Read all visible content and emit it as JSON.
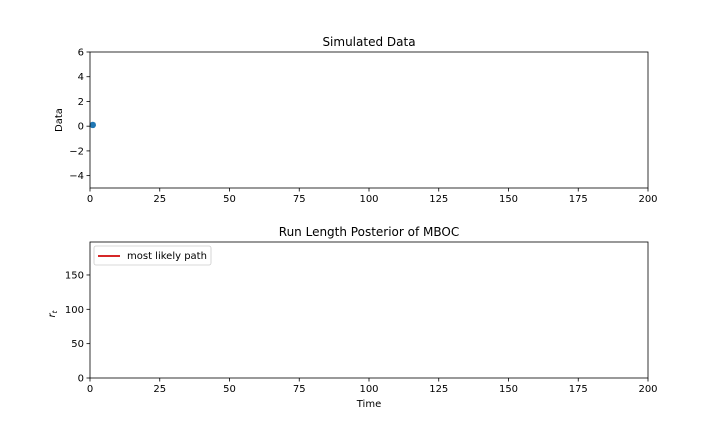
{
  "chart_data": [
    {
      "type": "scatter",
      "title": "Simulated Data",
      "xlabel": "",
      "ylabel": "Data",
      "xlim": [
        0,
        200
      ],
      "ylim": [
        -5,
        6
      ],
      "xticks": [
        0,
        25,
        50,
        75,
        100,
        125,
        150,
        175,
        200
      ],
      "yticks": [
        -4,
        -2,
        0,
        2,
        4,
        6
      ],
      "xtick_labels": [
        "0",
        "25",
        "50",
        "75",
        "100",
        "125",
        "150",
        "175",
        "200"
      ],
      "ytick_labels": [
        "−4",
        "−2",
        "0",
        "2",
        "4",
        "6"
      ],
      "grid": false,
      "color": "#1f77b4",
      "series": [
        {
          "x": [
            1
          ],
          "y": [
            0.1
          ]
        }
      ]
    },
    {
      "type": "line",
      "title": "Run Length Posterior of MBOC",
      "xlabel": "Time",
      "ylabel": "r",
      "ylabel_subscript": "t",
      "xlim": [
        0,
        200
      ],
      "ylim": [
        0,
        198
      ],
      "xticks": [
        0,
        25,
        50,
        75,
        100,
        125,
        150,
        175,
        200
      ],
      "yticks": [
        0,
        50,
        100,
        150
      ],
      "xtick_labels": [
        "0",
        "25",
        "50",
        "75",
        "100",
        "125",
        "150",
        "175",
        "200"
      ],
      "ytick_labels": [
        "0",
        "50",
        "100",
        "150"
      ],
      "grid": false,
      "legend_position": "upper-left",
      "series": [
        {
          "name": "most likely path",
          "color": "#d62728",
          "x": [],
          "y": []
        }
      ]
    }
  ]
}
